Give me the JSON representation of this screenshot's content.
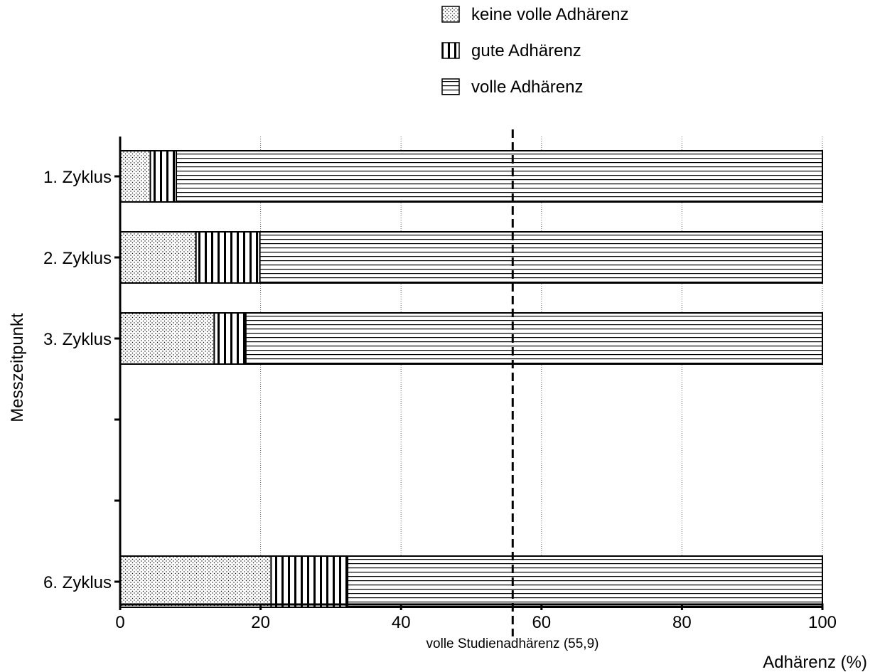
{
  "chart_data": {
    "type": "bar",
    "orientation": "horizontal",
    "stacked": true,
    "categories": [
      "1. Zyklus",
      "2. Zyklus",
      "3. Zyklus",
      "",
      "",
      "6. Zyklus"
    ],
    "series": [
      {
        "name": "keine volle Adhärenz",
        "pattern": "dots",
        "values": [
          4.3,
          10.8,
          13.4,
          null,
          null,
          21.5
        ]
      },
      {
        "name": "gute Adhärenz",
        "pattern": "vertical-lines",
        "values": [
          3.7,
          9.1,
          4.5,
          null,
          null,
          10.9
        ]
      },
      {
        "name": "volle Adhärenz",
        "pattern": "horizontal-lines",
        "values": [
          92.0,
          80.1,
          82.1,
          null,
          null,
          67.6
        ]
      }
    ],
    "xlabel": "Adhärenz (%)",
    "ylabel": "Messzeitpunkt",
    "xlim": [
      0,
      100
    ],
    "xticks": [
      "0",
      "20",
      "40",
      "60",
      "80",
      "100"
    ],
    "grid": "vertical dotted",
    "legend_position": "top",
    "reference_line": {
      "value": 55.9,
      "label": "volle Studienadhärenz (55,9)",
      "style": "dashed"
    }
  }
}
